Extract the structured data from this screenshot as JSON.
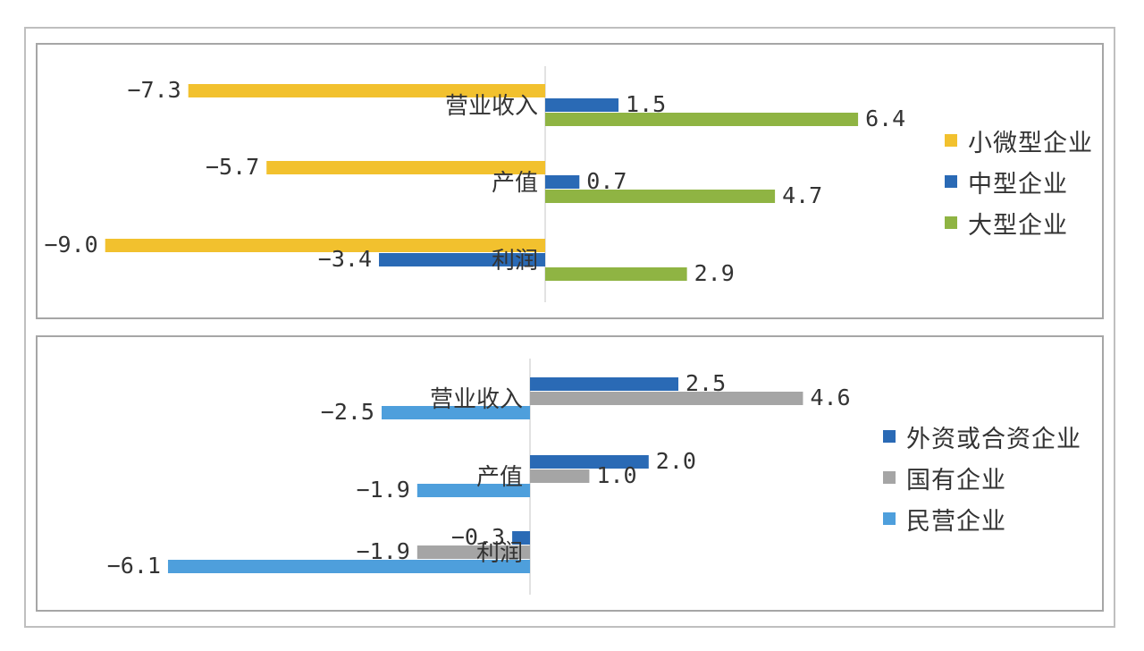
{
  "chart_data": [
    {
      "type": "bar",
      "orientation": "horizontal",
      "categories": [
        "营业收入",
        "产值",
        "利润"
      ],
      "series": [
        {
          "name": "小微型企业",
          "values": [
            -7.3,
            -5.7,
            -9.0
          ],
          "color": "#f2c12e"
        },
        {
          "name": "中型企业",
          "values": [
            1.5,
            0.7,
            -3.4
          ],
          "color": "#2a6ab5"
        },
        {
          "name": "大型企业",
          "values": [
            6.4,
            4.7,
            2.9
          ],
          "color": "#8fb443"
        }
      ],
      "value_format": "0.0",
      "grid": false,
      "legend_position": "right",
      "axis_line_color": "#d9d9d9"
    },
    {
      "type": "bar",
      "orientation": "horizontal",
      "categories": [
        "营业收入",
        "产值",
        "利润"
      ],
      "series": [
        {
          "name": "外资或合资企业",
          "values": [
            2.5,
            2.0,
            -0.3
          ],
          "color": "#2a6ab5"
        },
        {
          "name": "国有企业",
          "values": [
            4.6,
            1.0,
            -1.9
          ],
          "color": "#a5a5a5"
        },
        {
          "name": "民营企业",
          "values": [
            -2.5,
            -1.9,
            -6.1
          ],
          "color": "#4e9fdc"
        }
      ],
      "value_format": "0.0",
      "grid": false,
      "legend_position": "right",
      "axis_line_color": "#d9d9d9"
    }
  ]
}
